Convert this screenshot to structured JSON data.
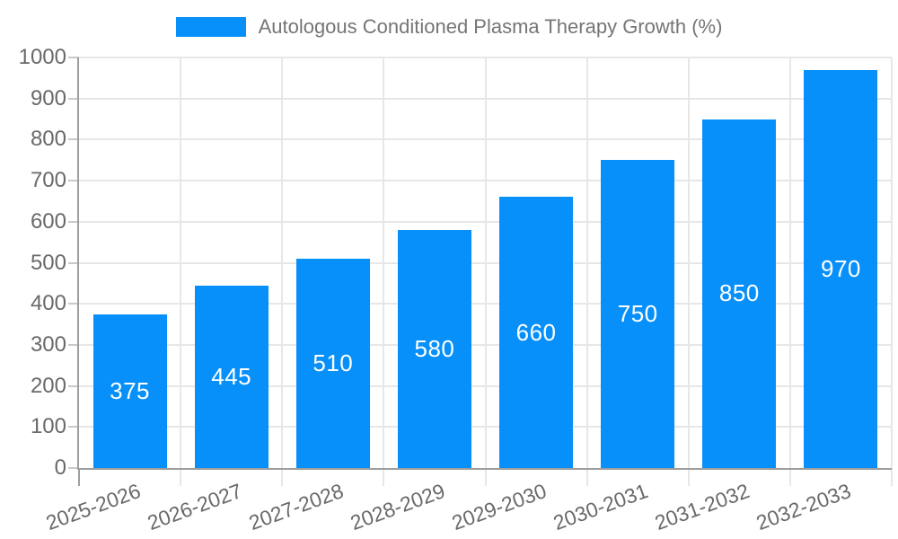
{
  "chart_data": {
    "type": "bar",
    "title": "",
    "categories": [
      "2025-2026",
      "2026-2027",
      "2027-2028",
      "2028-2029",
      "2029-2030",
      "2030-2031",
      "2031-2032",
      "2032-2033"
    ],
    "series": [
      {
        "name": "Autologous Conditioned Plasma Therapy Growth (%)",
        "values": [
          375,
          445,
          510,
          580,
          660,
          750,
          850,
          970
        ]
      }
    ],
    "xlabel": "",
    "ylabel": "",
    "ylim": [
      0,
      1000
    ],
    "ytick_step": 100,
    "yticks": [
      0,
      100,
      200,
      300,
      400,
      500,
      600,
      700,
      800,
      900,
      1000
    ],
    "grid": "both",
    "legend_position": "top-center",
    "bar_labels_visible": true,
    "x_label_rotation_deg": -20,
    "colors": {
      "bar": "#0890fa",
      "bar_label": "#ffffff",
      "axis_line": "#9e9e9e",
      "gridline": "#e7e7e7",
      "tick_mark": "#c9c9c9",
      "tick_label": "#696969",
      "legend_text": "#757575",
      "background": "#ffffff"
    }
  }
}
